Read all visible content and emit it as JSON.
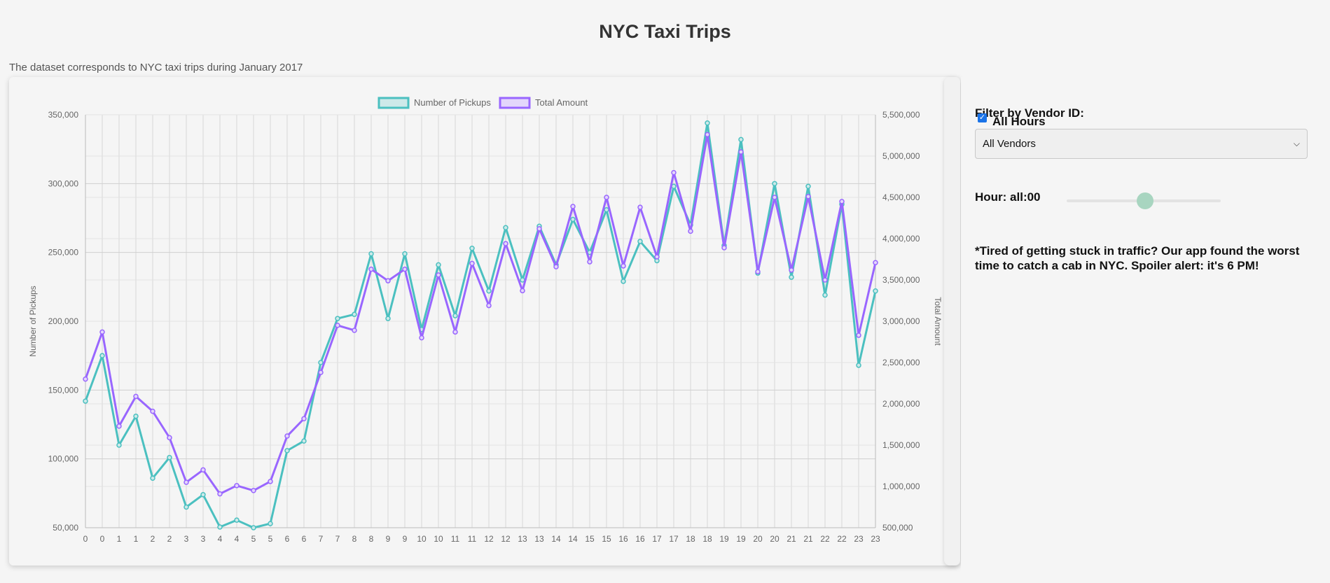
{
  "page": {
    "title": "NYC Taxi Trips",
    "subtitle": "The dataset corresponds to NYC taxi trips during January 2017"
  },
  "controls": {
    "filter_label": "Filter by Vendor ID:",
    "vendor_selected": "All Vendors",
    "hour_label": "Hour: all:00",
    "hour_slider_fraction": 0.51,
    "all_hours_label": "All Hours",
    "all_hours_checked": true,
    "note": "*Tired of getting stuck in traffic? Our app found the worst time to catch a cab in NYC. Spoiler alert: it's 6 PM!"
  },
  "chart_data": {
    "type": "line",
    "x": [
      0,
      0,
      1,
      1,
      2,
      2,
      3,
      3,
      4,
      4,
      5,
      5,
      6,
      6,
      7,
      7,
      8,
      8,
      9,
      9,
      10,
      10,
      11,
      11,
      12,
      12,
      13,
      13,
      14,
      14,
      15,
      15,
      16,
      16,
      17,
      17,
      18,
      18,
      19,
      19,
      20,
      20,
      21,
      21,
      22,
      22,
      23,
      23
    ],
    "xlabel": "",
    "ylabel_left": "Number of Pickups",
    "ylabel_right": "Total Amount",
    "ylim_left": [
      50000,
      350000
    ],
    "ylim_right": [
      500000,
      5500000
    ],
    "yticks_left": [
      "50,000",
      "100,000",
      "150,000",
      "200,000",
      "250,000",
      "300,000",
      "350,000"
    ],
    "yticks_right": [
      "500,000",
      "1,000,000",
      "1,500,000",
      "2,000,000",
      "2,500,000",
      "3,000,000",
      "3,500,000",
      "4,000,000",
      "4,500,000",
      "5,000,000",
      "5,500,000"
    ],
    "grid": true,
    "legend_position": "top",
    "series": [
      {
        "name": "Number of Pickups",
        "axis": "left",
        "color": "#4bc0c0",
        "fill": "#cde9e9",
        "values": [
          142000,
          175000,
          110000,
          131000,
          86000,
          101000,
          65000,
          74000,
          50500,
          55500,
          50000,
          53000,
          106000,
          113000,
          170000,
          202000,
          205000,
          249000,
          202000,
          249000,
          194000,
          241000,
          204000,
          253000,
          222000,
          268000,
          230000,
          269000,
          241000,
          274000,
          250000,
          281000,
          229000,
          258000,
          244000,
          298000,
          270000,
          344000,
          255000,
          332000,
          235000,
          300000,
          232000,
          298000,
          219000,
          285000,
          168000,
          222000
        ]
      },
      {
        "name": "Total Amount",
        "axis": "right",
        "color": "#9966ff",
        "fill": "#e3d6fb",
        "values": [
          2300000,
          2870000,
          1730000,
          2090000,
          1910000,
          1590000,
          1050000,
          1200000,
          910000,
          1010000,
          950000,
          1060000,
          1610000,
          1820000,
          2380000,
          2950000,
          2890000,
          3630000,
          3490000,
          3630000,
          2800000,
          3560000,
          2870000,
          3700000,
          3190000,
          3940000,
          3370000,
          4120000,
          3660000,
          4390000,
          3720000,
          4500000,
          3670000,
          4380000,
          3780000,
          4800000,
          4090000,
          5260000,
          3890000,
          5050000,
          3600000,
          4500000,
          3620000,
          4510000,
          3500000,
          4450000,
          2830000,
          3710000
        ]
      }
    ]
  }
}
